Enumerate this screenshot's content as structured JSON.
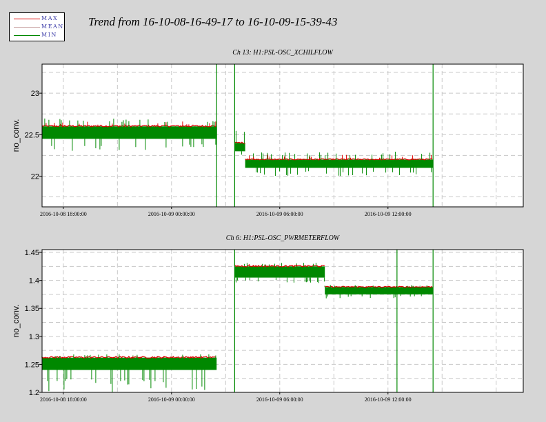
{
  "title": "Trend from 16-10-08-16-49-17 to 16-10-09-15-39-43",
  "legend": [
    {
      "label": "MAX",
      "color": "#dd0000"
    },
    {
      "label": "MEAN",
      "color": "#c8a0a0"
    },
    {
      "label": "MIN",
      "color": "#008800"
    }
  ],
  "colors": {
    "max": "#dd0000",
    "min": "#008800",
    "grid": "#c8c8c8",
    "background": "#d6d6d6",
    "plot_bg": "#ffffff"
  },
  "chart_data": [
    {
      "type": "line",
      "title": "Ch 13: H1:PSL-OSC_XCHILFLOW",
      "xlabel": "",
      "ylabel": "no_conv.",
      "x_tick_labels": [
        "2016-10-08 18:00:00",
        "2016-10-09 00:00:00",
        "2016-10-09 06:00:00",
        "2016-10-09 12:00:00"
      ],
      "x_range": [
        "2016-10-08 16:49:17",
        "2016-10-09 19:30:00"
      ],
      "y_ticks": [
        22,
        22.5,
        23
      ],
      "ylim": [
        21.63,
        23.35
      ],
      "grid": true,
      "segments": [
        {
          "start": "2016-10-08 16:49",
          "end": "2016-10-09 02:30",
          "min": 22.45,
          "max": 22.6,
          "spike_high": 22.7,
          "spike_low": 22.3
        },
        {
          "start": "2016-10-09 03:30",
          "end": "2016-10-09 04:05",
          "min": 22.3,
          "max": 22.4,
          "spike_high": 22.6,
          "spike_low": 22.2
        },
        {
          "start": "2016-10-09 04:05",
          "end": "2016-10-09 14:30",
          "min": 22.1,
          "max": 22.2,
          "spike_high": 22.3,
          "spike_low": 22.0
        }
      ],
      "dropouts": [
        "2016-10-09 02:30",
        "2016-10-09 03:30",
        "2016-10-09 14:30"
      ]
    },
    {
      "type": "line",
      "title": "Ch 6: H1:PSL-OSC_PWRMETERFLOW",
      "xlabel": "",
      "ylabel": "no_conv.",
      "x_tick_labels": [
        "2016-10-08 18:00:00",
        "2016-10-09 00:00:00",
        "2016-10-09 06:00:00",
        "2016-10-09 12:00:00"
      ],
      "x_range": [
        "2016-10-08 16:49:17",
        "2016-10-09 19:30:00"
      ],
      "y_ticks": [
        1.2,
        1.25,
        1.3,
        1.35,
        1.4,
        1.45
      ],
      "ylim": [
        1.2,
        1.455
      ],
      "grid": true,
      "segments": [
        {
          "start": "2016-10-08 16:49",
          "end": "2016-10-09 02:30",
          "min": 1.24,
          "max": 1.262,
          "spike_high": 1.268,
          "spike_low": 1.2
        },
        {
          "start": "2016-10-09 03:30",
          "end": "2016-10-09 08:30",
          "min": 1.405,
          "max": 1.425,
          "spike_high": 1.432,
          "spike_low": 1.395
        },
        {
          "start": "2016-10-09 08:30",
          "end": "2016-10-09 14:30",
          "min": 1.375,
          "max": 1.388,
          "spike_high": 1.392,
          "spike_low": 1.368
        }
      ],
      "dropouts": [
        "2016-10-09 03:30",
        "2016-10-09 12:30",
        "2016-10-09 14:30"
      ]
    }
  ]
}
